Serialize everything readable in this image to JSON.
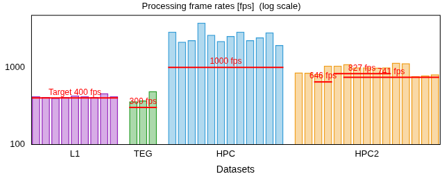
{
  "chart_data": {
    "type": "bar",
    "title": "Processing frame rates [fps]  (log scale)",
    "x_label": "Datasets",
    "log": "y",
    "grid": false,
    "ylim": [
      100,
      4800
    ],
    "yticks": [
      100,
      1000
    ],
    "series": [
      {
        "name": "L1",
        "color": "#9b30c0",
        "values": [
          420,
          410,
          400,
          410,
          430,
          420,
          410,
          460,
          420
        ]
      },
      {
        "name": "TEG",
        "color": "#2ca02c",
        "values": [
          360,
          370,
          490
        ]
      },
      {
        "name": "HPC",
        "color": "#3a9fd8",
        "values": [
          2900,
          2150,
          2250,
          3800,
          2650,
          2200,
          2550,
          2900,
          2250,
          2450,
          2850,
          1950
        ]
      },
      {
        "name": "HPC2",
        "color": "#f0a020",
        "values": [
          860,
          850,
          820,
          1050,
          1050,
          1100,
          1000,
          1000,
          990,
          1000,
          1150,
          1130,
          770,
          780,
          810
        ]
      }
    ],
    "reference_lines": [
      {
        "series": "L1",
        "start": 0,
        "end": 8,
        "value": 400,
        "label": "Target 400 fps",
        "color": "#ff0000"
      },
      {
        "series": "TEG",
        "start": 0,
        "end": 2,
        "value": 300,
        "label": "300 fps",
        "color": "#ff0000"
      },
      {
        "series": "HPC",
        "start": 0,
        "end": 11,
        "value": 1000,
        "label": "1000 fps",
        "color": "#ff0000"
      },
      {
        "series": "HPC2",
        "start": 2,
        "end": 3,
        "value": 646,
        "label": "646 fps",
        "color": "#ff0000"
      },
      {
        "series": "HPC2",
        "start": 4,
        "end": 9,
        "value": 827,
        "label": "827 fps",
        "color": "#ff0000"
      },
      {
        "series": "HPC2",
        "start": 5,
        "end": 14,
        "value": 741,
        "label": "741 fps",
        "color": "#ff0000"
      }
    ]
  }
}
